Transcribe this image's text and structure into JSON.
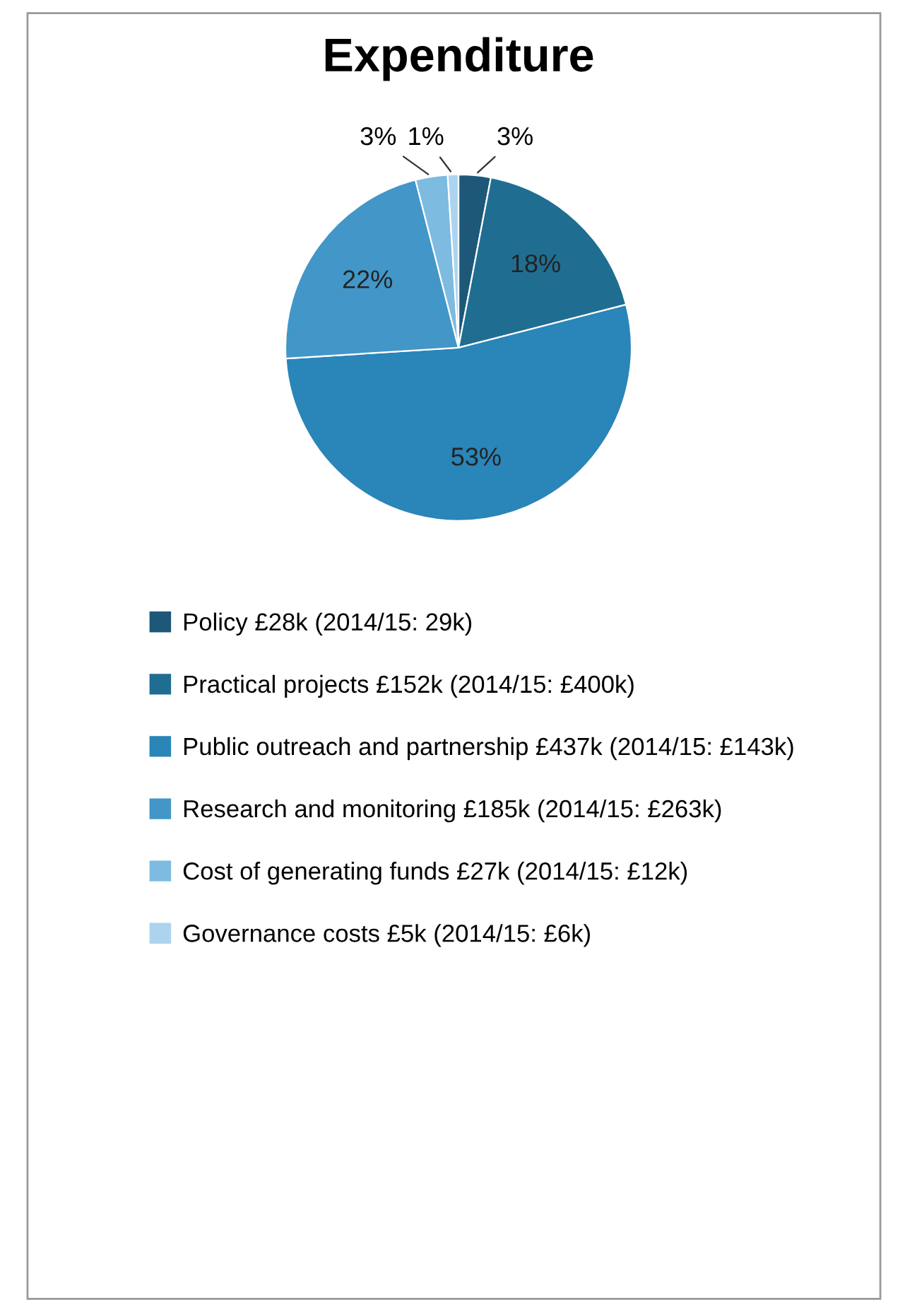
{
  "chart_data": {
    "type": "pie",
    "title": "Expenditure",
    "categories": [
      "Policy £28k (2014/15: 29k)",
      "Practical projects £152k (2014/15: £400k)",
      "Public outreach and partnership £437k (2014/15: £143k)",
      "Research and monitoring £185k (2014/15: £263k)",
      "Cost of generating funds £27k (2014/15: £12k)",
      "Governance costs £5k (2014/15: £6k)"
    ],
    "values": [
      3,
      18,
      53,
      22,
      3,
      1
    ],
    "colors": [
      "#1d5878",
      "#1f6e92",
      "#2a85b8",
      "#4296c8",
      "#7dbbe0",
      "#acd4ee"
    ],
    "value_labels": [
      "3%",
      "18%",
      "53%",
      "22%",
      "3%",
      "1%"
    ],
    "legend": "bottom"
  }
}
